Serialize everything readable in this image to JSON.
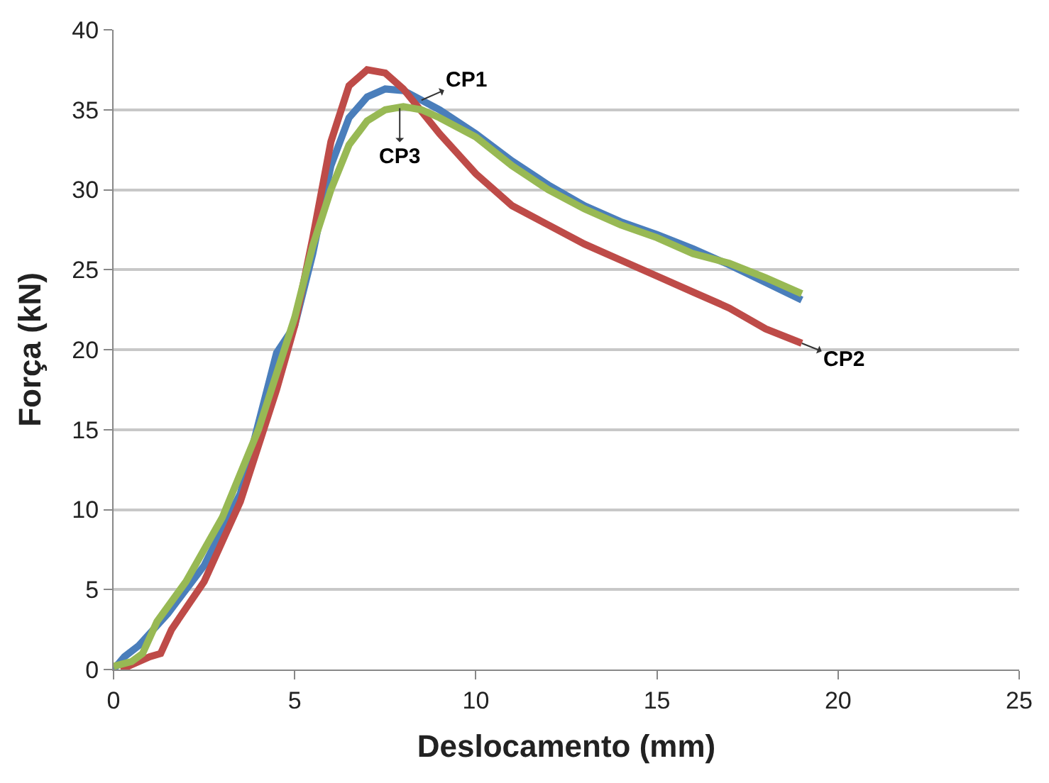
{
  "chart_data": {
    "type": "line",
    "xlabel": "Deslocamento (mm)",
    "ylabel": "Força (kN)",
    "xlim": [
      0,
      25
    ],
    "xticks": [
      0,
      5,
      10,
      15,
      20,
      25
    ],
    "ylim": [
      0,
      40
    ],
    "yticks": [
      0,
      5,
      10,
      15,
      20,
      25,
      30,
      35,
      40
    ],
    "grid": "y",
    "marker": "none",
    "line_style": "solid",
    "series": [
      {
        "color": "#4a7ebb",
        "x": [
          0,
          0.3,
          0.7,
          1.5,
          2.5,
          3.5,
          4.5,
          5,
          5.5,
          6,
          6.5,
          7,
          7.5,
          8,
          9,
          10,
          11,
          12,
          13,
          14,
          15,
          16,
          17,
          18,
          19
        ],
        "values": [
          0,
          0.8,
          1.5,
          3.5,
          6.5,
          11,
          19.8,
          21.5,
          26,
          31.5,
          34.5,
          35.8,
          36.3,
          36.2,
          35,
          33.5,
          31.8,
          30.3,
          29,
          28,
          27.2,
          26.3,
          25.3,
          24.2,
          23.1
        ]
      },
      {
        "color": "#be4b48",
        "x": [
          0.2,
          0.5,
          1,
          1.3,
          1.6,
          2.5,
          3.5,
          4.5,
          5,
          5.5,
          6,
          6.5,
          7,
          7.5,
          8,
          9,
          10,
          11,
          12,
          13,
          14,
          15,
          16,
          17,
          18,
          19
        ],
        "values": [
          0,
          0.3,
          0.8,
          1,
          2.5,
          5.5,
          10.5,
          17.5,
          21.5,
          27,
          33,
          36.5,
          37.5,
          37.3,
          36.3,
          33.5,
          31,
          29,
          27.8,
          26.6,
          25.6,
          24.6,
          23.6,
          22.6,
          21.3,
          20.4
        ]
      },
      {
        "color": "#98b954",
        "x": [
          0,
          0.5,
          0.8,
          1.2,
          2,
          3,
          4,
          4.5,
          5,
          5.5,
          6,
          6.5,
          7,
          7.5,
          8,
          8.5,
          9,
          10,
          11,
          12,
          13,
          14,
          15,
          16,
          17,
          18,
          19
        ],
        "values": [
          0.2,
          0.5,
          1,
          3,
          5.5,
          9.5,
          15,
          18.5,
          22,
          26.5,
          30,
          32.8,
          34.3,
          35,
          35.2,
          35,
          34.5,
          33.3,
          31.5,
          30,
          28.8,
          27.8,
          27,
          26,
          25.4,
          24.5,
          23.5
        ]
      }
    ],
    "annotations": [
      {
        "text": "CP1",
        "x": 8.5,
        "y": 35.6
      },
      {
        "text": "CP3",
        "x": 7.9,
        "y": 35.1
      },
      {
        "text": "CP2",
        "x": 19,
        "y": 20.4
      }
    ]
  }
}
